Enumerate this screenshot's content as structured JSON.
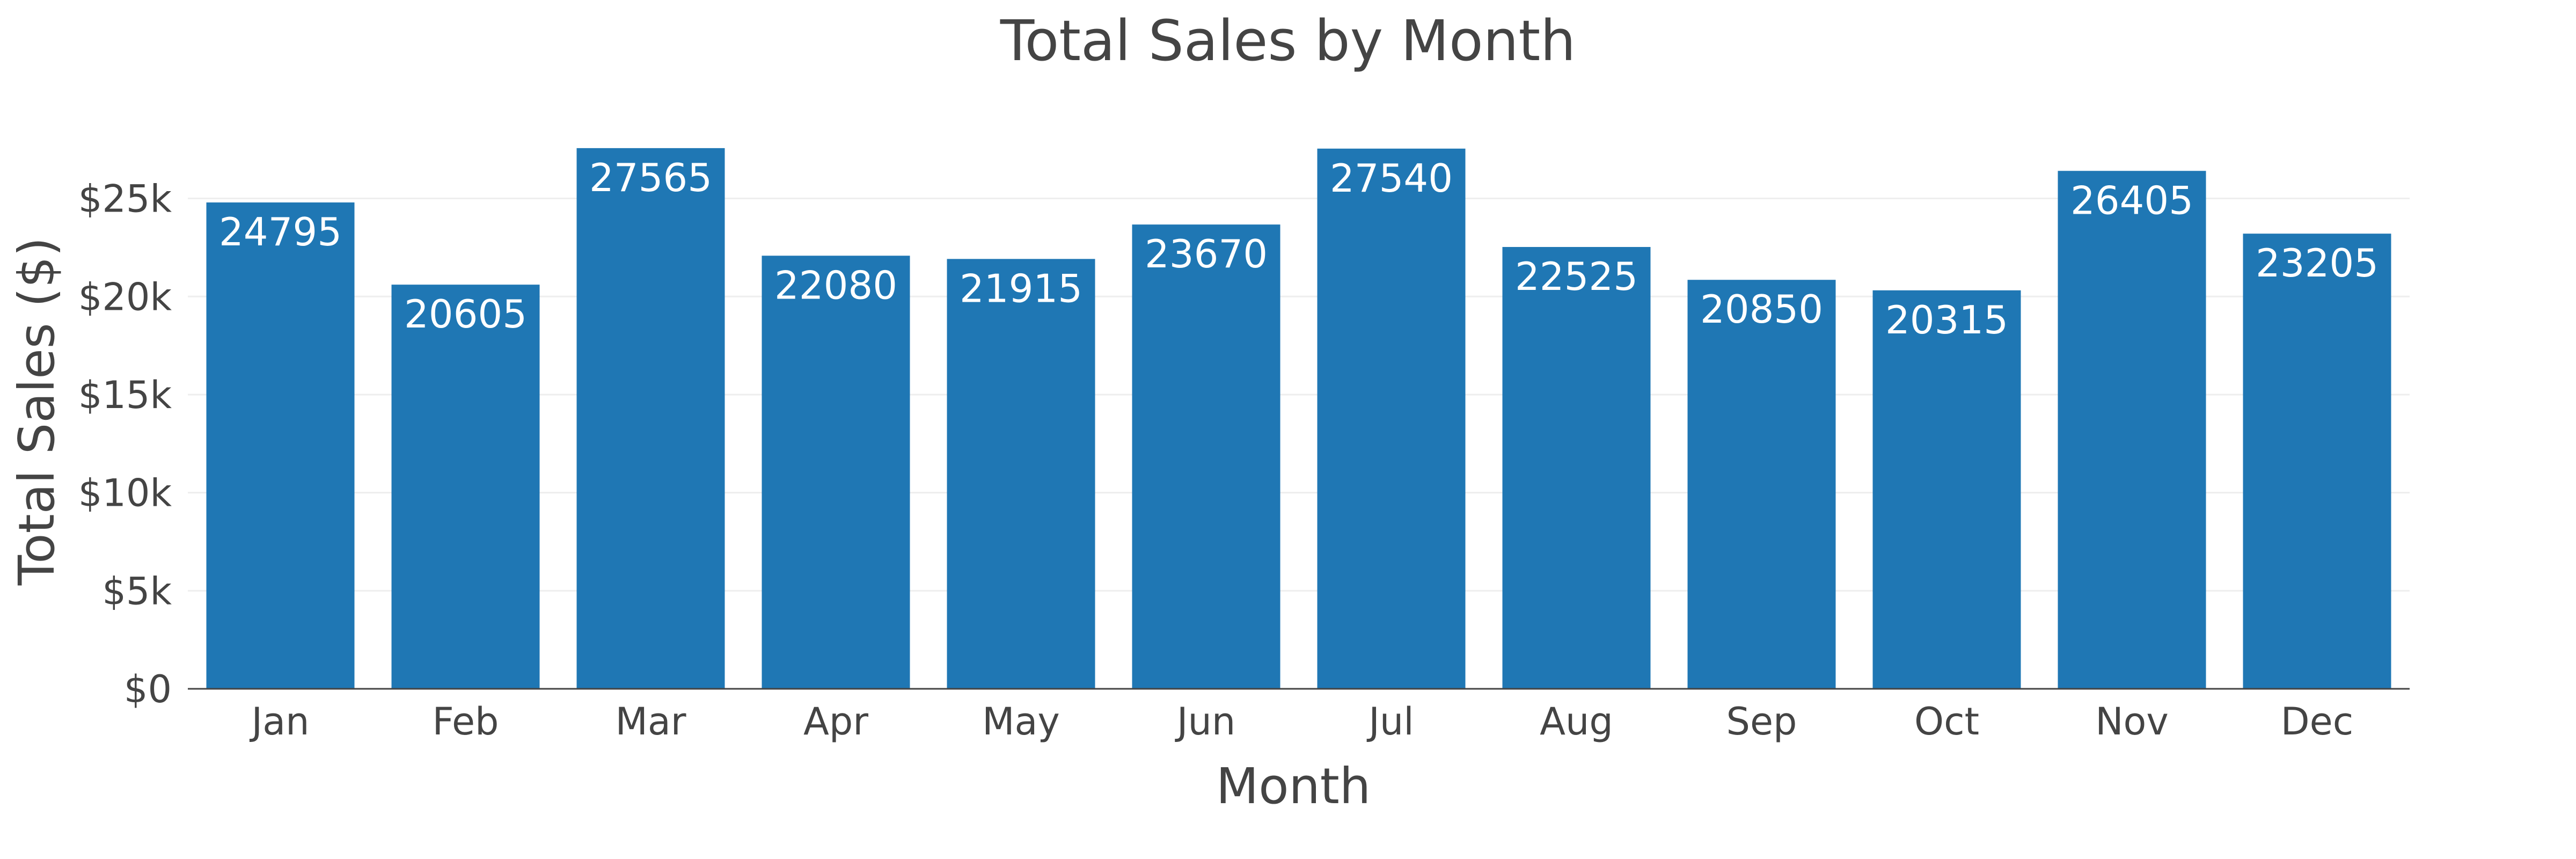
{
  "chart_data": {
    "type": "bar",
    "title": "Total Sales by Month",
    "xlabel": "Month",
    "ylabel": "Total Sales ($)",
    "categories": [
      "Jan",
      "Feb",
      "Mar",
      "Apr",
      "May",
      "Jun",
      "Jul",
      "Aug",
      "Sep",
      "Oct",
      "Nov",
      "Dec"
    ],
    "values": [
      24795,
      20605,
      27565,
      22080,
      21915,
      23670,
      27540,
      22525,
      20850,
      20315,
      26405,
      23205
    ],
    "ylim": [
      0,
      28000
    ],
    "yticks": [
      0,
      5000,
      10000,
      15000,
      20000,
      25000
    ],
    "ytick_labels": [
      "$0",
      "$5k",
      "$10k",
      "$15k",
      "$20k",
      "$25k"
    ],
    "grid": true,
    "bar_color": "#1f77b4",
    "label_color": "#ffffff",
    "text_color": "#444444",
    "data_labels": "inside-top"
  }
}
